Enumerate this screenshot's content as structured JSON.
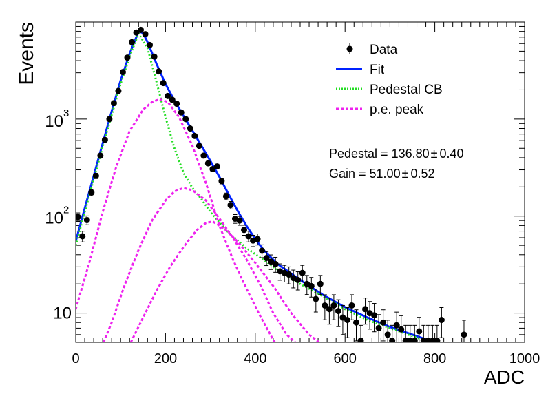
{
  "chart_data": {
    "type": "scatter",
    "title": "",
    "xlabel": "ADC",
    "ylabel": "Events",
    "xlim": [
      0,
      1000
    ],
    "ylim": [
      5,
      10000
    ],
    "yscale": "log",
    "grid": false,
    "legend_position": "top-right",
    "x_ticks": [
      "0",
      "200",
      "400",
      "600",
      "800",
      "1000"
    ],
    "y_ticks": [
      {
        "value": 10,
        "label": "10",
        "exp": ""
      },
      {
        "value": 100,
        "label": "10",
        "exp": "2"
      },
      {
        "value": 1000,
        "label": "10",
        "exp": "3"
      }
    ],
    "legend": [
      {
        "label": "Data",
        "style": "marker",
        "color": "#000000"
      },
      {
        "label": "Fit",
        "style": "solid",
        "color": "#0022ff"
      },
      {
        "label": "Pedestal CB",
        "style": "dotted",
        "color": "#22dd22"
      },
      {
        "label": "p.e. peak",
        "style": "dashed",
        "color": "#ee22ee"
      }
    ],
    "annotations": [
      {
        "text": "Pedestal = 136.80",
        "pm": "±",
        "err": "0.40"
      },
      {
        "text": "Gain = 51.00",
        "pm": "±",
        "err": "0.52"
      }
    ],
    "series": [
      {
        "name": "Data",
        "kind": "points",
        "color": "#000000",
        "points": [
          [
            5,
            98
          ],
          [
            15,
            62
          ],
          [
            25,
            91
          ],
          [
            35,
            175
          ],
          [
            45,
            260
          ],
          [
            55,
            420
          ],
          [
            65,
            610
          ],
          [
            75,
            1000
          ],
          [
            85,
            1460
          ],
          [
            95,
            1950
          ],
          [
            105,
            3050
          ],
          [
            115,
            4300
          ],
          [
            125,
            6200
          ],
          [
            135,
            7800
          ],
          [
            145,
            8300
          ],
          [
            155,
            7500
          ],
          [
            165,
            5800
          ],
          [
            175,
            4400
          ],
          [
            185,
            3100
          ],
          [
            195,
            2350
          ],
          [
            205,
            1730
          ],
          [
            215,
            1580
          ],
          [
            225,
            1440
          ],
          [
            235,
            1170
          ],
          [
            245,
            1000
          ],
          [
            255,
            800
          ],
          [
            265,
            670
          ],
          [
            275,
            530
          ],
          [
            285,
            420
          ],
          [
            295,
            350
          ],
          [
            305,
            305
          ],
          [
            315,
            325
          ],
          [
            325,
            230
          ],
          [
            335,
            160
          ],
          [
            345,
            130
          ],
          [
            355,
            94
          ],
          [
            365,
            90
          ],
          [
            375,
            72
          ],
          [
            385,
            62
          ],
          [
            395,
            56
          ],
          [
            405,
            58
          ],
          [
            415,
            44
          ],
          [
            425,
            37
          ],
          [
            435,
            34
          ],
          [
            445,
            32
          ],
          [
            455,
            27
          ],
          [
            465,
            26
          ],
          [
            475,
            25
          ],
          [
            485,
            23
          ],
          [
            495,
            22
          ],
          [
            505,
            26
          ],
          [
            515,
            20
          ],
          [
            525,
            19
          ],
          [
            535,
            14
          ],
          [
            545,
            20
          ],
          [
            555,
            12
          ],
          [
            565,
            11
          ],
          [
            575,
            12
          ],
          [
            585,
            10.5
          ],
          [
            595,
            9
          ],
          [
            605,
            8.5
          ],
          [
            615,
            12
          ],
          [
            625,
            8
          ],
          [
            635,
            5.2
          ],
          [
            645,
            11
          ],
          [
            655,
            10
          ],
          [
            665,
            9.5
          ],
          [
            675,
            7
          ],
          [
            685,
            8
          ],
          [
            695,
            6
          ],
          [
            705,
            5.2
          ],
          [
            715,
            7.5
          ],
          [
            725,
            6.8
          ],
          [
            735,
            5.2
          ],
          [
            745,
            5.2
          ],
          [
            755,
            5.2
          ],
          [
            765,
            6.5
          ],
          [
            775,
            5.2
          ],
          [
            785,
            5.2
          ],
          [
            795,
            5.2
          ],
          [
            805,
            5.2
          ],
          [
            815,
            8.5
          ],
          [
            865,
            6
          ]
        ]
      },
      {
        "name": "Fit",
        "kind": "curve",
        "color": "#0022ff",
        "points": [
          [
            0,
            55
          ],
          [
            20,
            120
          ],
          [
            40,
            260
          ],
          [
            60,
            560
          ],
          [
            80,
            1200
          ],
          [
            100,
            2500
          ],
          [
            120,
            4700
          ],
          [
            140,
            8000
          ],
          [
            150,
            7700
          ],
          [
            160,
            6200
          ],
          [
            180,
            3700
          ],
          [
            200,
            2300
          ],
          [
            220,
            1550
          ],
          [
            240,
            1080
          ],
          [
            260,
            760
          ],
          [
            280,
            530
          ],
          [
            300,
            370
          ],
          [
            320,
            255
          ],
          [
            340,
            170
          ],
          [
            360,
            115
          ],
          [
            380,
            80
          ],
          [
            400,
            58
          ],
          [
            420,
            44
          ],
          [
            450,
            32
          ],
          [
            500,
            22
          ],
          [
            550,
            15.5
          ],
          [
            600,
            11.5
          ],
          [
            650,
            9
          ],
          [
            700,
            7.2
          ],
          [
            750,
            6
          ],
          [
            800,
            5
          ]
        ]
      },
      {
        "name": "Pedestal CB",
        "kind": "curve",
        "color": "#22dd22",
        "points": [
          [
            0,
            50
          ],
          [
            20,
            110
          ],
          [
            40,
            240
          ],
          [
            60,
            520
          ],
          [
            80,
            1100
          ],
          [
            100,
            2300
          ],
          [
            120,
            4400
          ],
          [
            140,
            7600
          ],
          [
            160,
            5400
          ],
          [
            180,
            2400
          ],
          [
            200,
            1050
          ],
          [
            220,
            500
          ],
          [
            240,
            280
          ],
          [
            260,
            195
          ],
          [
            280,
            150
          ],
          [
            300,
            110
          ],
          [
            340,
            68
          ],
          [
            380,
            47
          ],
          [
            420,
            35
          ],
          [
            460,
            26
          ],
          [
            500,
            20
          ],
          [
            550,
            15
          ],
          [
            600,
            11
          ],
          [
            650,
            8.5
          ],
          [
            700,
            7
          ],
          [
            750,
            5.8
          ],
          [
            790,
            5
          ]
        ]
      },
      {
        "name": "p.e. peak 1",
        "kind": "curve",
        "color": "#ee22ee",
        "points": [
          [
            0,
            11
          ],
          [
            30,
            33
          ],
          [
            60,
            110
          ],
          [
            90,
            320
          ],
          [
            120,
            750
          ],
          [
            150,
            1250
          ],
          [
            170,
            1500
          ],
          [
            187,
            1600
          ],
          [
            205,
            1500
          ],
          [
            230,
            1050
          ],
          [
            260,
            530
          ],
          [
            290,
            220
          ],
          [
            320,
            80
          ],
          [
            350,
            36
          ],
          [
            380,
            18
          ],
          [
            410,
            9.5
          ],
          [
            440,
            5.3
          ],
          [
            450,
            4.5
          ]
        ]
      },
      {
        "name": "p.e. peak 2",
        "kind": "curve",
        "color": "#ee22ee",
        "points": [
          [
            58,
            4.5
          ],
          [
            80,
            8
          ],
          [
            110,
            20
          ],
          [
            140,
            45
          ],
          [
            170,
            90
          ],
          [
            200,
            145
          ],
          [
            220,
            180
          ],
          [
            240,
            195
          ],
          [
            260,
            185
          ],
          [
            290,
            145
          ],
          [
            320,
            95
          ],
          [
            350,
            60
          ],
          [
            380,
            36
          ],
          [
            410,
            20
          ],
          [
            440,
            10
          ],
          [
            470,
            6
          ],
          [
            500,
            4.5
          ]
        ]
      },
      {
        "name": "p.e. peak 3",
        "kind": "curve",
        "color": "#ee22ee",
        "points": [
          [
            118,
            4.5
          ],
          [
            150,
            9
          ],
          [
            180,
            17
          ],
          [
            210,
            30
          ],
          [
            240,
            48
          ],
          [
            270,
            72
          ],
          [
            290,
            85
          ],
          [
            305,
            88
          ],
          [
            330,
            75
          ],
          [
            360,
            55
          ],
          [
            400,
            33
          ],
          [
            440,
            19
          ],
          [
            480,
            10
          ],
          [
            520,
            6
          ],
          [
            555,
            4.5
          ]
        ]
      }
    ]
  }
}
